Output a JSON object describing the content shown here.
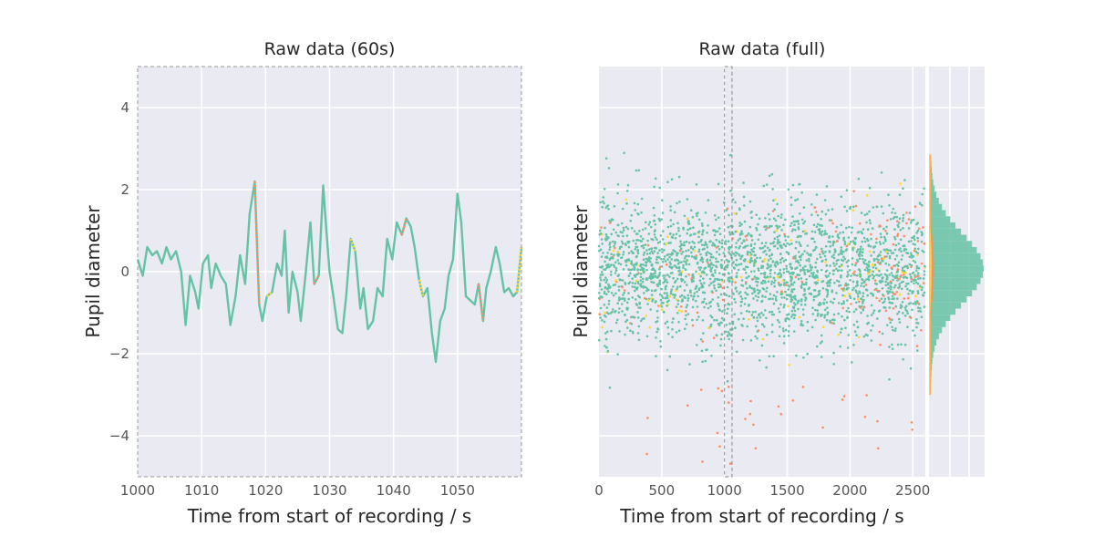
{
  "chart_data": [
    {
      "type": "line",
      "title": "Raw data (60s)",
      "xlabel": "Time from start of recording / s",
      "ylabel": "Pupil diameter",
      "xlim": [
        1000,
        1060
      ],
      "ylim": [
        -5,
        5
      ],
      "xticks": [
        1000,
        1010,
        1020,
        1030,
        1040,
        1050
      ],
      "yticks": [
        -4,
        -2,
        0,
        2,
        4
      ],
      "grid": true,
      "series": [
        {
          "color": "#66c2a5",
          "x": [
            1000,
            1000.8,
            1001.5,
            1002.3,
            1003,
            1003.8,
            1004.5,
            1005.2,
            1006,
            1006.8,
            1007.5,
            1008.2,
            1009,
            1009.5,
            1010.2,
            1011,
            1011.5,
            1012.2,
            1013,
            1013.8,
            1014.5,
            1015.3,
            1016,
            1016.8,
            1017.5,
            1018.3,
            1019,
            1019.5,
            1020.2,
            1021,
            1021.8,
            1022.5,
            1023,
            1023.6,
            1024.2,
            1025,
            1025.5,
            1026.3,
            1027,
            1027.6,
            1028.3,
            1029,
            1029.5,
            1030,
            1030.6,
            1031.3,
            1032,
            1032.6,
            1033.3,
            1034,
            1034.8,
            1035.3,
            1036,
            1036.8,
            1037.5,
            1038.3,
            1039,
            1039.8,
            1040.5,
            1041.3,
            1042,
            1042.7,
            1043.3,
            1044,
            1044.6,
            1045.3,
            1046,
            1046.6,
            1047.3,
            1048,
            1048.6,
            1049.3,
            1050,
            1050.6,
            1051.3,
            1052,
            1052.7,
            1053.3,
            1054,
            1054.5,
            1055.2,
            1056,
            1056.6,
            1057.3,
            1058,
            1058.7,
            1059.3,
            1060
          ],
          "y": [
            0.3,
            -0.1,
            0.6,
            0.4,
            0.5,
            0.2,
            0.6,
            0.3,
            0.5,
            0.0,
            -1.3,
            -0.1,
            -0.5,
            -0.9,
            0.2,
            0.4,
            -0.4,
            0.2,
            -0.1,
            -0.3,
            -1.3,
            -0.6,
            0.4,
            -0.3,
            1.4,
            2.2,
            -0.8,
            -1.2,
            -0.6,
            -0.5,
            0.2,
            -0.1,
            1.0,
            -1.0,
            0.0,
            -0.5,
            -1.2,
            0.0,
            1.2,
            -0.3,
            -0.1,
            2.1,
            1.0,
            0.0,
            -0.6,
            -1.4,
            -1.5,
            -0.6,
            0.8,
            0.5,
            -0.9,
            -0.4,
            -1.4,
            -1.2,
            -0.4,
            -0.6,
            0.8,
            0.3,
            1.2,
            0.9,
            1.3,
            1.1,
            0.6,
            -0.2,
            -0.6,
            -0.4,
            -1.5,
            -2.2,
            -1.2,
            -0.9,
            -0.1,
            0.3,
            1.9,
            1.2,
            -0.6,
            -0.7,
            -0.8,
            -0.3,
            -1.2,
            -0.4,
            0.0,
            0.6,
            0.2,
            -0.5,
            -0.4,
            -0.6,
            -0.5,
            0.6
          ]
        }
      ]
    },
    {
      "type": "scatter",
      "title": "Raw data (full)",
      "xlabel": "Time from start of recording / s",
      "ylabel": "Pupil diameter",
      "xlim": [
        0,
        2600
      ],
      "ylim": [
        -5,
        5
      ],
      "xticks": [
        0,
        500,
        1000,
        1500,
        2000,
        2500
      ],
      "grid": true,
      "highlight_window": [
        1000,
        1060
      ],
      "series": [
        {
          "color": "#66c2a5",
          "distribution": "mean 0, sd 0.8, dense"
        },
        {
          "color": "#fc8d62",
          "distribution": "sparse, increasing after 2200"
        },
        {
          "color": "#ffd92f",
          "distribution": "sparse"
        }
      ],
      "marginal_histogram": {
        "orientation": "horizontal",
        "colors": [
          "#66c2a5",
          "#fc8d62",
          "#ffd92f"
        ]
      }
    }
  ]
}
